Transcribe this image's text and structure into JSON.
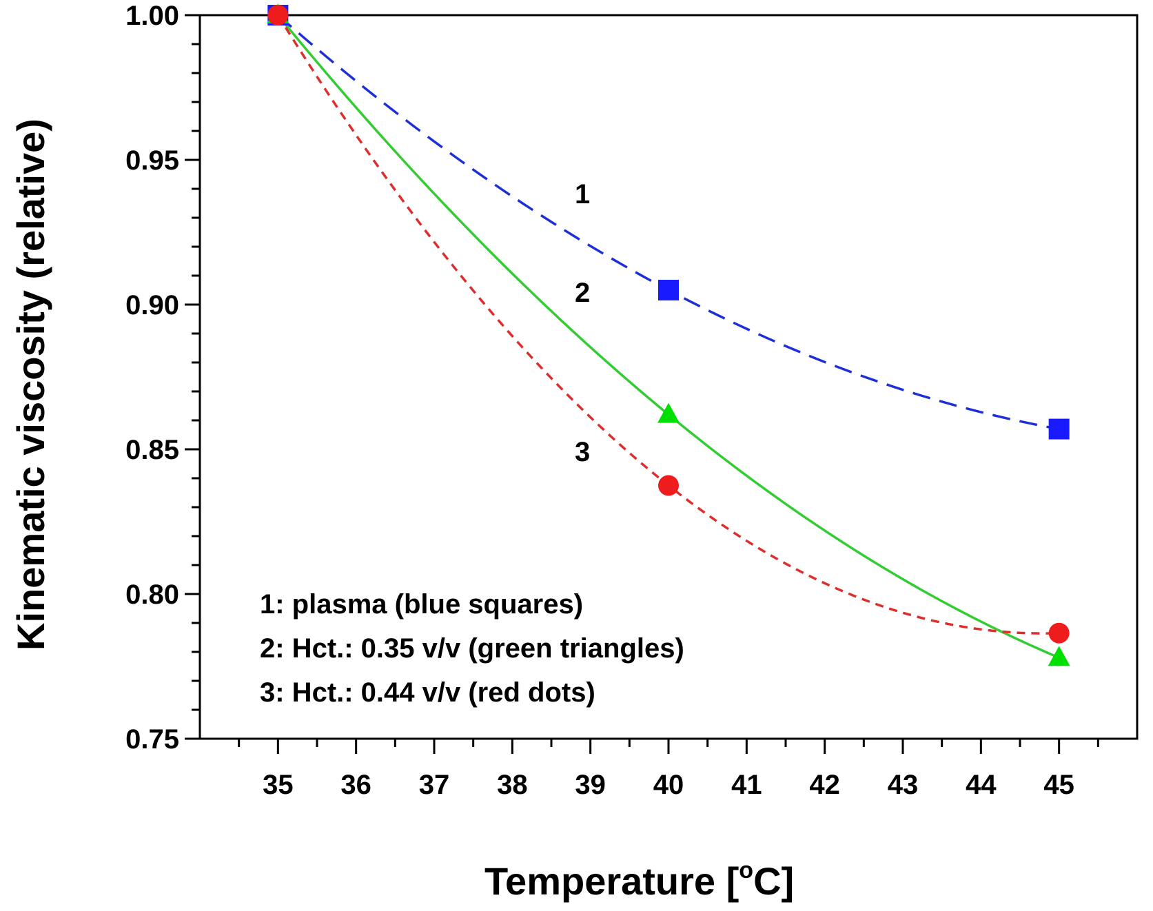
{
  "chart_data": {
    "type": "line",
    "title": "",
    "xlabel": "Temperature [",
    "xlabel_degree": "o",
    "xlabel_unit": "C]",
    "ylabel": "Kinematic viscosity (relative)",
    "xlim": [
      34,
      46
    ],
    "ylim": [
      0.75,
      1.0
    ],
    "x_ticks": [
      35,
      36,
      37,
      38,
      39,
      40,
      41,
      42,
      43,
      44,
      45
    ],
    "x_tick_labels": [
      "35",
      "36",
      "37",
      "38",
      "39",
      "40",
      "41",
      "42",
      "43",
      "44",
      "45"
    ],
    "y_ticks": [
      0.75,
      0.8,
      0.85,
      0.9,
      0.95,
      1.0
    ],
    "y_tick_labels": [
      "0.75",
      "0.80",
      "0.85",
      "0.90",
      "0.95",
      "1.00"
    ],
    "y_minor_step": 0.01,
    "grid": false,
    "series": [
      {
        "name": "1: plasma (blue squares)",
        "id": "plasma",
        "color": "#1a1aff",
        "line_color": "#1e2fd8",
        "marker": "square",
        "line_style": "long-dash",
        "x": [
          35,
          40,
          45
        ],
        "values": [
          1.0,
          0.905,
          0.857
        ],
        "curve_label": "1",
        "curve_label_pos": [
          38.8,
          0.935
        ]
      },
      {
        "name": "2: Hct.: 0.35 v/v (green triangles)",
        "id": "hct035",
        "color": "#00e000",
        "line_color": "#33cc33",
        "marker": "triangle",
        "line_style": "solid",
        "x": [
          35,
          40,
          45
        ],
        "values": [
          1.0,
          0.862,
          0.778
        ],
        "curve_label": "2",
        "curve_label_pos": [
          38.8,
          0.901
        ]
      },
      {
        "name": "3: Hct.: 0.44 v/v (red dots)",
        "id": "hct044",
        "color": "#ee1c1c",
        "line_color": "#dd2e2e",
        "marker": "circle",
        "line_style": "short-dash",
        "x": [
          35,
          40,
          45
        ],
        "values": [
          1.0,
          0.8375,
          0.7865
        ],
        "curve_label": "3",
        "curve_label_pos": [
          38.8,
          0.846
        ]
      }
    ],
    "legend": [
      "1: plasma (blue squares)",
      "2: Hct.: 0.35 v/v (green triangles)",
      "3: Hct.: 0.44 v/v (red dots)"
    ],
    "legend_position": "bottom-left"
  }
}
